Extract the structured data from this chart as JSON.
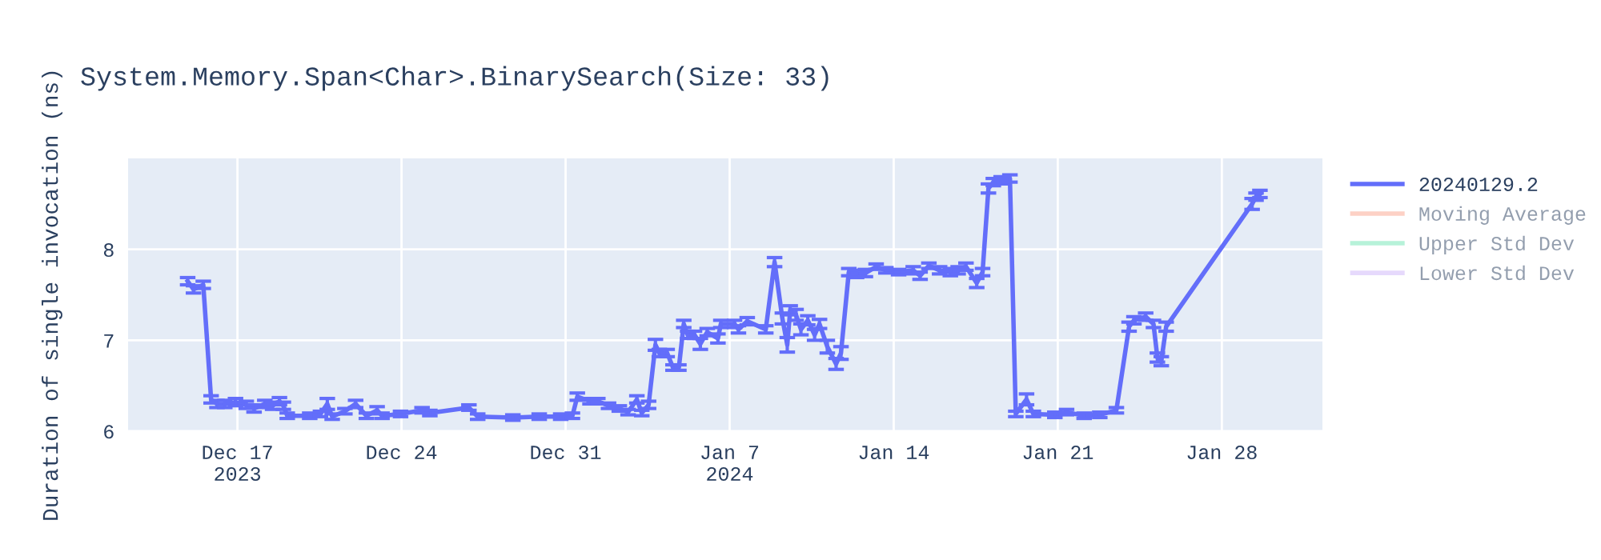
{
  "chart_data": {
    "type": "line",
    "title": "System.Memory.Span<Char>.BinarySearch(Size: 33)",
    "ylabel": "Duration of single invocation (ns)",
    "x": [
      "2023-12-14T21:00",
      "2023-12-15T03:00",
      "2023-12-15T13:00",
      "2023-12-15T21:00",
      "2023-12-16T03:00",
      "2023-12-16T11:00",
      "2023-12-16T22:00",
      "2023-12-17T09:00",
      "2023-12-17T17:00",
      "2023-12-18T04:00",
      "2023-12-18T12:00",
      "2023-12-18T19:00",
      "2023-12-18T23:00",
      "2023-12-19T03:00",
      "2023-12-20T02:00",
      "2023-12-20T13:00",
      "2023-12-20T20:00",
      "2023-12-21T01:00",
      "2023-12-21T14:00",
      "2023-12-22T01:00",
      "2023-12-22T12:00",
      "2023-12-22T23:00",
      "2023-12-23T04:00",
      "2023-12-23T23:00",
      "2023-12-24T21:00",
      "2023-12-25T05:00",
      "2023-12-26T21:00",
      "2023-12-27T06:00",
      "2023-12-28T18:00",
      "2023-12-29T21:00",
      "2023-12-30T19:00",
      "2023-12-31T07:00",
      "2023-12-31T12:00",
      "2024-01-01T01:00",
      "2024-01-01T09:00",
      "2024-01-01T20:00",
      "2024-01-02T07:00",
      "2024-01-02T16:00",
      "2024-01-03T01:00",
      "2024-01-03T06:00",
      "2024-01-03T13:00",
      "2024-01-03T20:00",
      "2024-01-04T00:00",
      "2024-01-04T08:00",
      "2024-01-04T14:00",
      "2024-01-04T20:00",
      "2024-01-05T01:00",
      "2024-01-05T05:00",
      "2024-01-05T12:00",
      "2024-01-05T18:00",
      "2024-01-06T01:00",
      "2024-01-06T12:00",
      "2024-01-06T15:00",
      "2024-01-07T05:00",
      "2024-01-07T09:00",
      "2024-01-07T18:00",
      "2024-01-08T13:00",
      "2024-01-08T22:00",
      "2024-01-09T06:00",
      "2024-01-09T11:00",
      "2024-01-09T14:00",
      "2024-01-09T20:00",
      "2024-01-10T01:00",
      "2024-01-10T08:00",
      "2024-01-10T15:00",
      "2024-01-10T20:00",
      "2024-01-11T04:00",
      "2024-01-11T13:00",
      "2024-01-11T18:00",
      "2024-01-12T02:00",
      "2024-01-12T10:00",
      "2024-01-12T19:00",
      "2024-01-13T06:00",
      "2024-01-13T16:00",
      "2024-01-14T05:00",
      "2024-01-14T20:00",
      "2024-01-15T03:00",
      "2024-01-15T12:00",
      "2024-01-15T23:00",
      "2024-01-16T10:00",
      "2024-01-16T18:00",
      "2024-01-17T02:00",
      "2024-01-17T13:00",
      "2024-01-17T19:00",
      "2024-01-18T01:00",
      "2024-01-18T06:00",
      "2024-01-18T14:00",
      "2024-01-18T23:00",
      "2024-01-19T05:00",
      "2024-01-19T16:00",
      "2024-01-19T23:00",
      "2024-01-20T21:00",
      "2024-01-21T09:00",
      "2024-01-22T03:00",
      "2024-01-22T19:00",
      "2024-01-23T12:00",
      "2024-01-24T01:00",
      "2024-01-24T06:00",
      "2024-01-24T18:00",
      "2024-01-25T02:00",
      "2024-01-25T06:00",
      "2024-01-25T10:00",
      "2024-01-25T15:00",
      "2024-01-29T07:00",
      "2024-01-29T11:00",
      "2024-01-29T15:00"
    ],
    "series": [
      {
        "name": "20240129.2",
        "color": "#636efa",
        "values": [
          7.65,
          7.56,
          7.61,
          6.35,
          6.3,
          6.3,
          6.32,
          6.29,
          6.25,
          6.3,
          6.28,
          6.33,
          6.28,
          6.17,
          6.17,
          6.19,
          6.3,
          6.16,
          6.22,
          6.3,
          6.17,
          6.23,
          6.17,
          6.19,
          6.23,
          6.2,
          6.26,
          6.16,
          6.15,
          6.16,
          6.16,
          6.17,
          6.38,
          6.33,
          6.33,
          6.28,
          6.25,
          6.21,
          6.35,
          6.2,
          6.29,
          6.95,
          6.86,
          6.86,
          6.7,
          6.7,
          7.18,
          7.06,
          7.06,
          6.96,
          7.09,
          7.02,
          7.18,
          7.18,
          7.12,
          7.21,
          7.12,
          7.86,
          7.24,
          6.95,
          7.33,
          7.28,
          7.12,
          7.22,
          7.06,
          7.18,
          6.93,
          6.74,
          6.86,
          7.75,
          7.73,
          7.74,
          7.81,
          7.77,
          7.75,
          7.77,
          7.71,
          7.82,
          7.77,
          7.75,
          7.77,
          7.81,
          7.63,
          7.75,
          8.67,
          8.74,
          8.76,
          8.78,
          6.19,
          6.35,
          6.19,
          6.18,
          6.21,
          6.17,
          6.18,
          6.23,
          7.15,
          7.22,
          7.26,
          7.18,
          6.81,
          6.77,
          7.15,
          8.5,
          8.58,
          8.61
        ],
        "errors": [
          0.04,
          0.04,
          0.04,
          0.04,
          0.04,
          0.04,
          0.04,
          0.04,
          0.04,
          0.04,
          0.04,
          0.04,
          0.04,
          0.03,
          0.03,
          0.03,
          0.06,
          0.03,
          0.03,
          0.04,
          0.03,
          0.04,
          0.03,
          0.03,
          0.03,
          0.03,
          0.03,
          0.03,
          0.03,
          0.03,
          0.03,
          0.03,
          0.04,
          0.03,
          0.03,
          0.03,
          0.03,
          0.03,
          0.04,
          0.03,
          0.04,
          0.06,
          0.04,
          0.04,
          0.03,
          0.03,
          0.04,
          0.04,
          0.04,
          0.06,
          0.04,
          0.05,
          0.04,
          0.04,
          0.04,
          0.04,
          0.04,
          0.05,
          0.06,
          0.08,
          0.05,
          0.06,
          0.06,
          0.05,
          0.06,
          0.05,
          0.07,
          0.06,
          0.07,
          0.04,
          0.04,
          0.04,
          0.03,
          0.03,
          0.03,
          0.04,
          0.04,
          0.03,
          0.04,
          0.04,
          0.04,
          0.04,
          0.05,
          0.04,
          0.05,
          0.04,
          0.04,
          0.04,
          0.03,
          0.06,
          0.03,
          0.03,
          0.03,
          0.03,
          0.03,
          0.03,
          0.05,
          0.04,
          0.04,
          0.04,
          0.05,
          0.05,
          0.05,
          0.06,
          0.04,
          0.04
        ]
      },
      {
        "name": "Moving Average",
        "color": "#fca48c",
        "values": [
          null,
          null,
          null,
          null,
          null,
          null,
          null,
          null,
          null,
          null,
          null,
          null,
          null,
          null,
          null,
          null,
          null,
          null,
          null,
          null,
          null,
          null,
          null,
          null,
          null,
          null,
          null,
          null,
          null,
          null,
          null,
          null,
          null,
          null,
          null,
          null,
          null,
          null,
          null,
          null,
          null,
          null,
          null,
          null,
          null,
          null,
          null,
          null,
          null,
          null,
          null,
          null,
          null,
          null,
          null,
          null,
          null,
          null,
          null,
          null,
          null,
          null,
          null,
          null,
          null,
          null,
          null,
          null,
          null,
          null,
          null,
          null,
          null,
          null,
          null,
          null,
          null,
          null,
          null,
          null,
          null,
          null,
          null,
          null,
          null,
          null,
          null,
          null,
          null,
          null,
          null,
          null,
          null,
          null,
          null,
          null,
          null,
          null,
          null,
          null,
          null,
          null,
          null,
          null,
          null,
          null
        ]
      },
      {
        "name": "Upper Std Dev",
        "color": "#6de6b4",
        "values": [
          null,
          null,
          null,
          null,
          null,
          null,
          null,
          null,
          null,
          null,
          null,
          null,
          null,
          null,
          null,
          null,
          null,
          null,
          null,
          null,
          null,
          null,
          null,
          null,
          null,
          null,
          null,
          null,
          null,
          null,
          null,
          null,
          null,
          null,
          null,
          null,
          null,
          null,
          null,
          null,
          null,
          null,
          null,
          null,
          null,
          null,
          null,
          null,
          null,
          null,
          null,
          null,
          null,
          null,
          null,
          null,
          null,
          null,
          null,
          null,
          null,
          null,
          null,
          null,
          null,
          null,
          null,
          null,
          null,
          null,
          null,
          null,
          null,
          null,
          null,
          null,
          null,
          null,
          null,
          null,
          null,
          null,
          null,
          null,
          null,
          null,
          null,
          null,
          null,
          null,
          null,
          null,
          null,
          null,
          null,
          null,
          null,
          null,
          null,
          null,
          null,
          null,
          null,
          null,
          null,
          null
        ]
      },
      {
        "name": "Lower Std Dev",
        "color": "#cdb4fa",
        "values": [
          null,
          null,
          null,
          null,
          null,
          null,
          null,
          null,
          null,
          null,
          null,
          null,
          null,
          null,
          null,
          null,
          null,
          null,
          null,
          null,
          null,
          null,
          null,
          null,
          null,
          null,
          null,
          null,
          null,
          null,
          null,
          null,
          null,
          null,
          null,
          null,
          null,
          null,
          null,
          null,
          null,
          null,
          null,
          null,
          null,
          null,
          null,
          null,
          null,
          null,
          null,
          null,
          null,
          null,
          null,
          null,
          null,
          null,
          null,
          null,
          null,
          null,
          null,
          null,
          null,
          null,
          null,
          null,
          null,
          null,
          null,
          null,
          null,
          null,
          null,
          null,
          null,
          null,
          null,
          null,
          null,
          null,
          null,
          null,
          null,
          null,
          null,
          null,
          null,
          null,
          null,
          null,
          null,
          null,
          null,
          null,
          null,
          null,
          null,
          null,
          null,
          null,
          null,
          null,
          null,
          null
        ]
      }
    ],
    "xlim": [
      "2023-12-12T08:00",
      "2024-02-01T07:00"
    ],
    "xticks": [
      {
        "value": "2023-12-17",
        "label": "Dec 17\n2023"
      },
      {
        "value": "2023-12-24",
        "label": "Dec 24"
      },
      {
        "value": "2023-12-31",
        "label": "Dec 31"
      },
      {
        "value": "2024-01-07",
        "label": "Jan 7\n2024"
      },
      {
        "value": "2024-01-14",
        "label": "Jan 14"
      },
      {
        "value": "2024-01-21",
        "label": "Jan 21"
      },
      {
        "value": "2024-01-28",
        "label": "Jan 28"
      }
    ],
    "ylim": [
      6,
      9
    ],
    "yticks": [
      6,
      7,
      8
    ],
    "grid": true,
    "legend": "top right",
    "marker": "none",
    "line_style": "solid"
  }
}
